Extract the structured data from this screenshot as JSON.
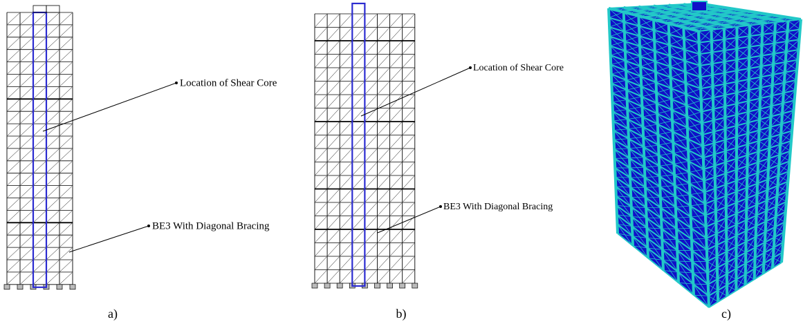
{
  "panels": [
    {
      "label": "a)",
      "annotations": [
        "Location of Shear Core",
        "BE3 With Diagonal Bracing"
      ]
    },
    {
      "label": "b)",
      "annotations": [
        "Location of Shear Core",
        "BE3 With Diagonal Bracing"
      ]
    },
    {
      "label": "c)"
    }
  ]
}
